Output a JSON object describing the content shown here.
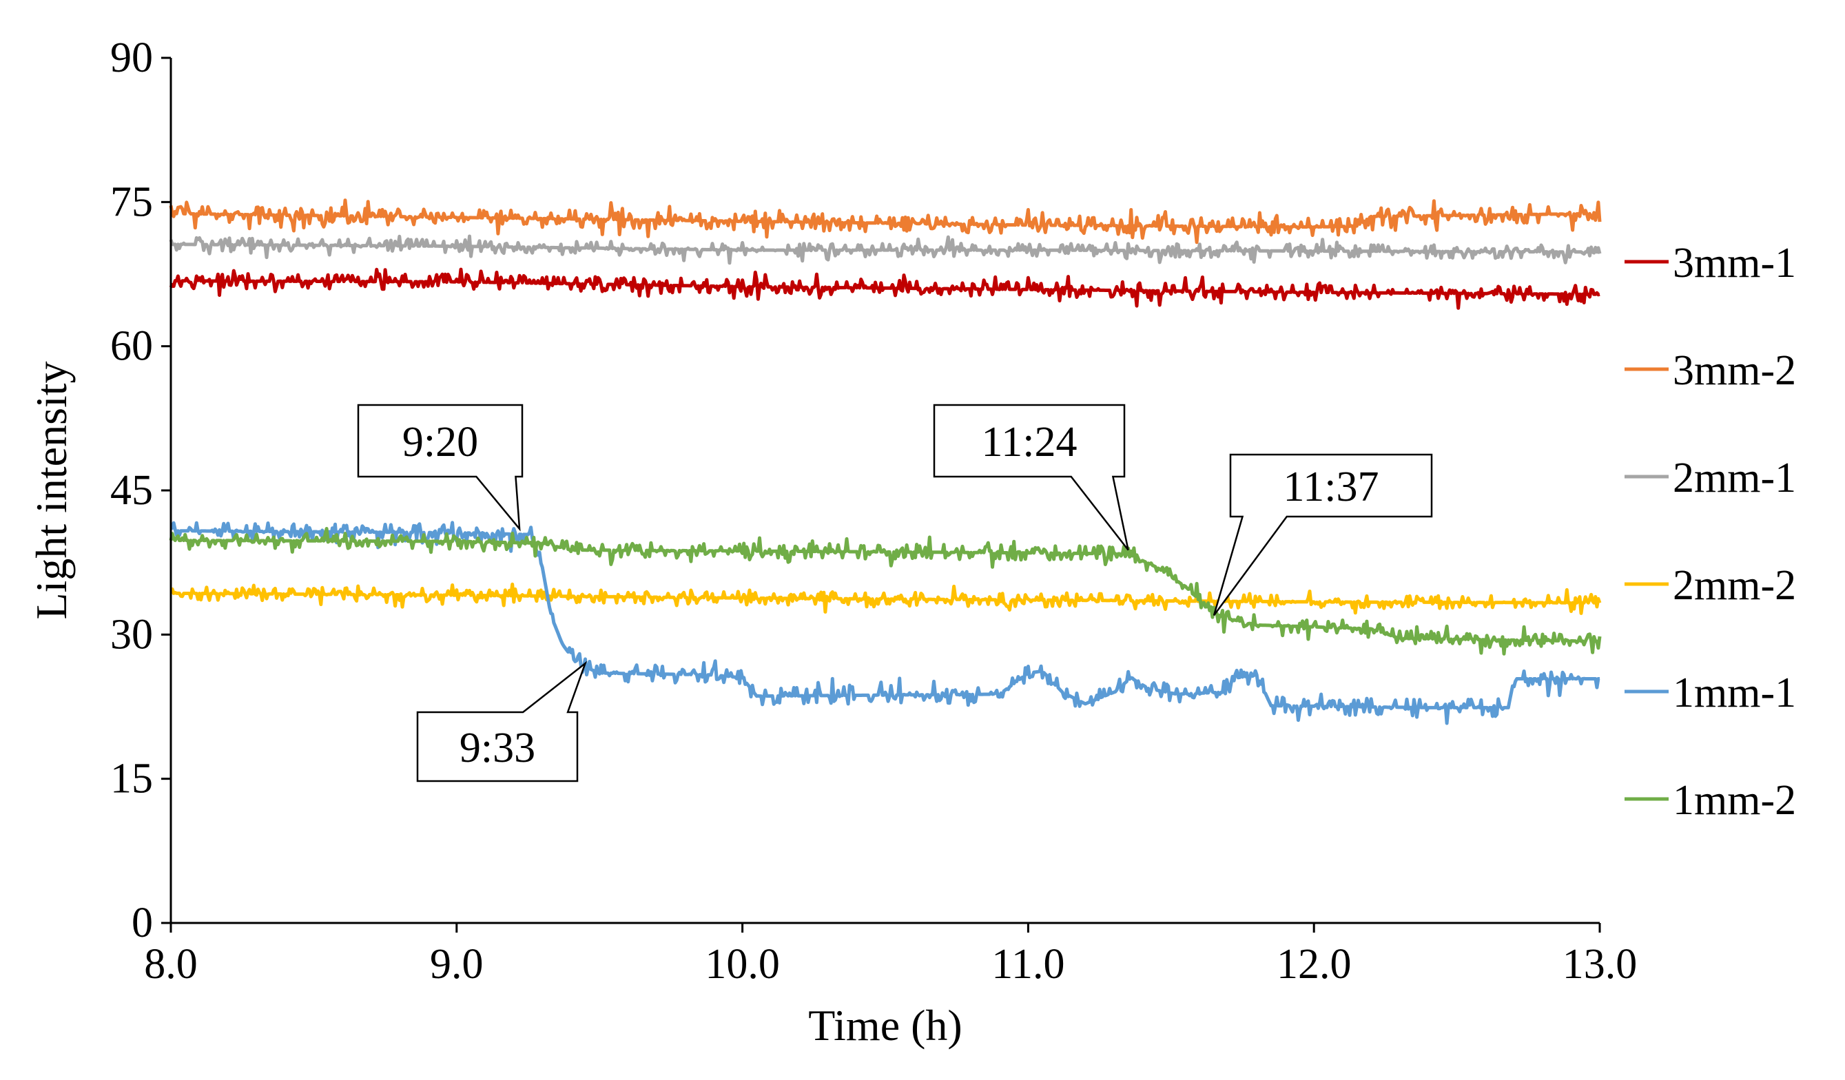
{
  "chart_data": {
    "type": "line",
    "title": "",
    "xlabel": "Time (h)",
    "ylabel": "Light intensity",
    "xlim": [
      8.0,
      13.0
    ],
    "ylim": [
      0,
      90
    ],
    "xticks": [
      "8.0",
      "9.0",
      "10.0",
      "11.0",
      "12.0",
      "13.0"
    ],
    "yticks": [
      "0",
      "15",
      "30",
      "45",
      "60",
      "75",
      "90"
    ],
    "grid": false,
    "legend_position": "right",
    "series": [
      {
        "name": "3mm-1",
        "color": "#C00000",
        "noise": 0.8,
        "points": [
          [
            8.0,
            66.8
          ],
          [
            9.0,
            66.7
          ],
          [
            10.0,
            66.2
          ],
          [
            11.0,
            65.9
          ],
          [
            12.0,
            65.6
          ],
          [
            13.0,
            65.4
          ]
        ]
      },
      {
        "name": "3mm-2",
        "color": "#ED7D31",
        "noise": 0.9,
        "points": [
          [
            8.0,
            73.8
          ],
          [
            9.0,
            73.4
          ],
          [
            10.0,
            73.0
          ],
          [
            11.0,
            72.6
          ],
          [
            12.0,
            72.4
          ],
          [
            12.15,
            72.5
          ],
          [
            12.2,
            73.5
          ],
          [
            13.0,
            73.8
          ]
        ]
      },
      {
        "name": "2mm-1",
        "color": "#A5A5A5",
        "noise": 0.7,
        "points": [
          [
            8.0,
            70.6
          ],
          [
            9.0,
            70.4
          ],
          [
            10.0,
            70.0
          ],
          [
            11.0,
            70.0
          ],
          [
            12.0,
            69.9
          ],
          [
            13.0,
            69.8
          ]
        ]
      },
      {
        "name": "2mm-2",
        "color": "#FFC000",
        "noise": 0.7,
        "points": [
          [
            8.0,
            34.3
          ],
          [
            9.0,
            34.1
          ],
          [
            10.0,
            33.8
          ],
          [
            11.0,
            33.6
          ],
          [
            12.0,
            33.4
          ],
          [
            13.0,
            33.3
          ]
        ]
      },
      {
        "name": "1mm-1",
        "color": "#5B9BD5",
        "noise": 0.9,
        "points": [
          [
            8.0,
            40.8
          ],
          [
            9.0,
            40.6
          ],
          [
            9.26,
            40.4
          ],
          [
            9.3,
            37.0
          ],
          [
            9.33,
            32.0
          ],
          [
            9.37,
            29.0
          ],
          [
            9.42,
            27.0
          ],
          [
            9.5,
            26.0
          ],
          [
            9.9,
            25.8
          ],
          [
            10.0,
            25.5
          ],
          [
            10.05,
            23.6
          ],
          [
            10.9,
            23.8
          ],
          [
            11.0,
            26.0
          ],
          [
            11.05,
            26.2
          ],
          [
            11.12,
            24.0
          ],
          [
            11.2,
            22.8
          ],
          [
            11.3,
            24.0
          ],
          [
            11.36,
            25.5
          ],
          [
            11.42,
            24.4
          ],
          [
            11.52,
            23.8
          ],
          [
            11.68,
            24.0
          ],
          [
            11.73,
            25.5
          ],
          [
            11.8,
            25.8
          ],
          [
            11.85,
            22.6
          ],
          [
            12.4,
            22.4
          ],
          [
            12.68,
            22.4
          ],
          [
            12.7,
            25.4
          ],
          [
            13.0,
            25.4
          ]
        ]
      },
      {
        "name": "1mm-2",
        "color": "#70AD47",
        "noise": 0.8,
        "points": [
          [
            8.0,
            39.8
          ],
          [
            9.0,
            39.7
          ],
          [
            9.3,
            39.5
          ],
          [
            9.4,
            38.8
          ],
          [
            10.0,
            38.7
          ],
          [
            11.0,
            38.5
          ],
          [
            11.35,
            38.4
          ],
          [
            11.45,
            37.0
          ],
          [
            11.55,
            35.0
          ],
          [
            11.62,
            33.0
          ],
          [
            11.68,
            31.8
          ],
          [
            11.8,
            31.0
          ],
          [
            12.0,
            30.8
          ],
          [
            12.2,
            30.6
          ],
          [
            12.3,
            29.6
          ],
          [
            13.0,
            29.3
          ]
        ]
      }
    ],
    "annotations": [
      {
        "text": "9:20",
        "target": [
          9.22,
          41.0
        ]
      },
      {
        "text": "9:33",
        "target": [
          9.45,
          27.0
        ]
      },
      {
        "text": "11:24",
        "target": [
          11.35,
          38.8
        ]
      },
      {
        "text": "11:37",
        "target": [
          11.65,
          32.0
        ]
      }
    ]
  }
}
